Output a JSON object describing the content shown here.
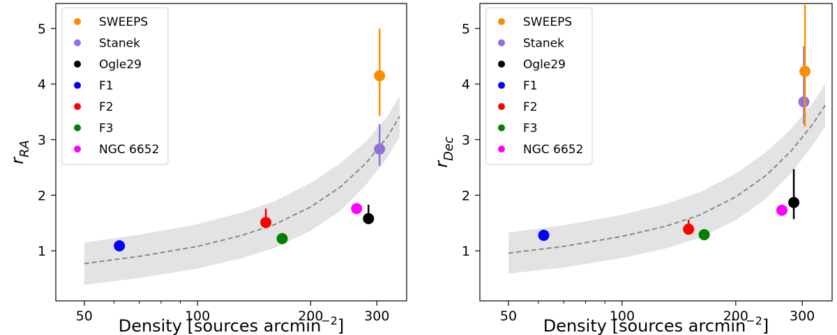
{
  "chart_data": [
    {
      "type": "scatter",
      "panel": "left",
      "title": "",
      "xlabel": "Density [sources arcmin",
      "xlabel_sup": "−2",
      "xlabel_end": "]",
      "ylabel_main": "r",
      "ylabel_sub": "RA",
      "xscale": "log",
      "xlim": [
        42,
        360
      ],
      "ylim": [
        0.1,
        5.45
      ],
      "xticks": [
        {
          "value": 50,
          "label": "50"
        },
        {
          "value": 100,
          "label": "100"
        },
        {
          "value": 200,
          "label": "200"
        },
        {
          "value": 300,
          "label": "300"
        }
      ],
      "yticks": [
        {
          "value": 1,
          "label": "1"
        },
        {
          "value": 2,
          "label": "2"
        },
        {
          "value": 3,
          "label": "3"
        },
        {
          "value": 4,
          "label": "4"
        },
        {
          "value": 5,
          "label": "5"
        }
      ],
      "legend_position": "top-left",
      "fit_curve": {
        "x": [
          50,
          70,
          100,
          130,
          160,
          200,
          240,
          280,
          320,
          345
        ],
        "y": [
          0.77,
          0.9,
          1.08,
          1.27,
          1.47,
          1.79,
          2.15,
          2.57,
          3.05,
          3.42
        ],
        "band_half_width": [
          0.38,
          0.39,
          0.4,
          0.41,
          0.42,
          0.43,
          0.43,
          0.39,
          0.37,
          0.37
        ],
        "style": "dashed",
        "color": "#888888",
        "band_color": "#e3e3e3"
      },
      "series": [
        {
          "name": "SWEEPS",
          "color": "#ff8c00",
          "x": 305,
          "y": 4.15,
          "err_lo": 0.72,
          "err_hi": 0.85
        },
        {
          "name": "Stanek",
          "color": "#9370db",
          "x": 305,
          "y": 2.83,
          "err_lo": 0.3,
          "err_hi": 0.45
        },
        {
          "name": "Ogle29",
          "color": "#000000",
          "x": 285,
          "y": 1.58,
          "err_lo": 0.0,
          "err_hi": 0.25
        },
        {
          "name": "F1",
          "color": "#0000ff",
          "x": 62,
          "y": 1.09,
          "err_lo": 0.0,
          "err_hi": 0.0
        },
        {
          "name": "F2",
          "color": "#ff0000",
          "x": 152,
          "y": 1.51,
          "err_lo": 0.0,
          "err_hi": 0.25
        },
        {
          "name": "F3",
          "color": "#008000",
          "x": 168,
          "y": 1.22,
          "err_lo": 0.0,
          "err_hi": 0.0
        },
        {
          "name": "NGC 6652",
          "color": "#ff00ff",
          "x": 265,
          "y": 1.76,
          "err_lo": 0.0,
          "err_hi": 0.0
        }
      ]
    },
    {
      "type": "scatter",
      "panel": "right",
      "title": "",
      "xlabel": "Density [sources arcmin",
      "xlabel_sup": "−2",
      "xlabel_end": "]",
      "ylabel_main": "r",
      "ylabel_sub": "Dec",
      "xscale": "log",
      "xlim": [
        42,
        360
      ],
      "ylim": [
        0.1,
        5.45
      ],
      "xticks": [
        {
          "value": 50,
          "label": "50"
        },
        {
          "value": 100,
          "label": "100"
        },
        {
          "value": 200,
          "label": "200"
        },
        {
          "value": 300,
          "label": "300"
        }
      ],
      "yticks": [
        {
          "value": 1,
          "label": "1"
        },
        {
          "value": 2,
          "label": "2"
        },
        {
          "value": 3,
          "label": "3"
        },
        {
          "value": 4,
          "label": "4"
        },
        {
          "value": 5,
          "label": "5"
        }
      ],
      "legend_position": "top-left",
      "fit_curve": {
        "x": [
          50,
          70,
          100,
          130,
          160,
          200,
          240,
          280,
          320,
          345
        ],
        "y": [
          0.96,
          1.08,
          1.26,
          1.44,
          1.64,
          1.97,
          2.35,
          2.79,
          3.28,
          3.62
        ],
        "band_half_width": [
          0.37,
          0.38,
          0.39,
          0.4,
          0.41,
          0.42,
          0.42,
          0.4,
          0.38,
          0.38
        ],
        "style": "dashed",
        "color": "#888888",
        "band_color": "#e3e3e3"
      },
      "series": [
        {
          "name": "SWEEPS",
          "color": "#ff8c00",
          "x": 305,
          "y": 4.23,
          "err_lo": 1.0,
          "err_hi": 1.2
        },
        {
          "name": "Stanek",
          "color": "#9370db",
          "x": 303,
          "y": 3.68,
          "err_lo": 0.4,
          "err_hi": 1.0
        },
        {
          "name": "Ogle29",
          "color": "#000000",
          "x": 285,
          "y": 1.87,
          "err_lo": 0.3,
          "err_hi": 0.6
        },
        {
          "name": "F1",
          "color": "#0000ff",
          "x": 62,
          "y": 1.28,
          "err_lo": 0.0,
          "err_hi": 0.1
        },
        {
          "name": "F2",
          "color": "#ff0000",
          "x": 150,
          "y": 1.39,
          "err_lo": 0.0,
          "err_hi": 0.17
        },
        {
          "name": "F3",
          "color": "#008000",
          "x": 165,
          "y": 1.29,
          "err_lo": 0.0,
          "err_hi": 0.1
        },
        {
          "name": "NGC 6652",
          "color": "#ff00ff",
          "x": 265,
          "y": 1.73,
          "err_lo": 0.0,
          "err_hi": 0.0
        }
      ]
    }
  ]
}
